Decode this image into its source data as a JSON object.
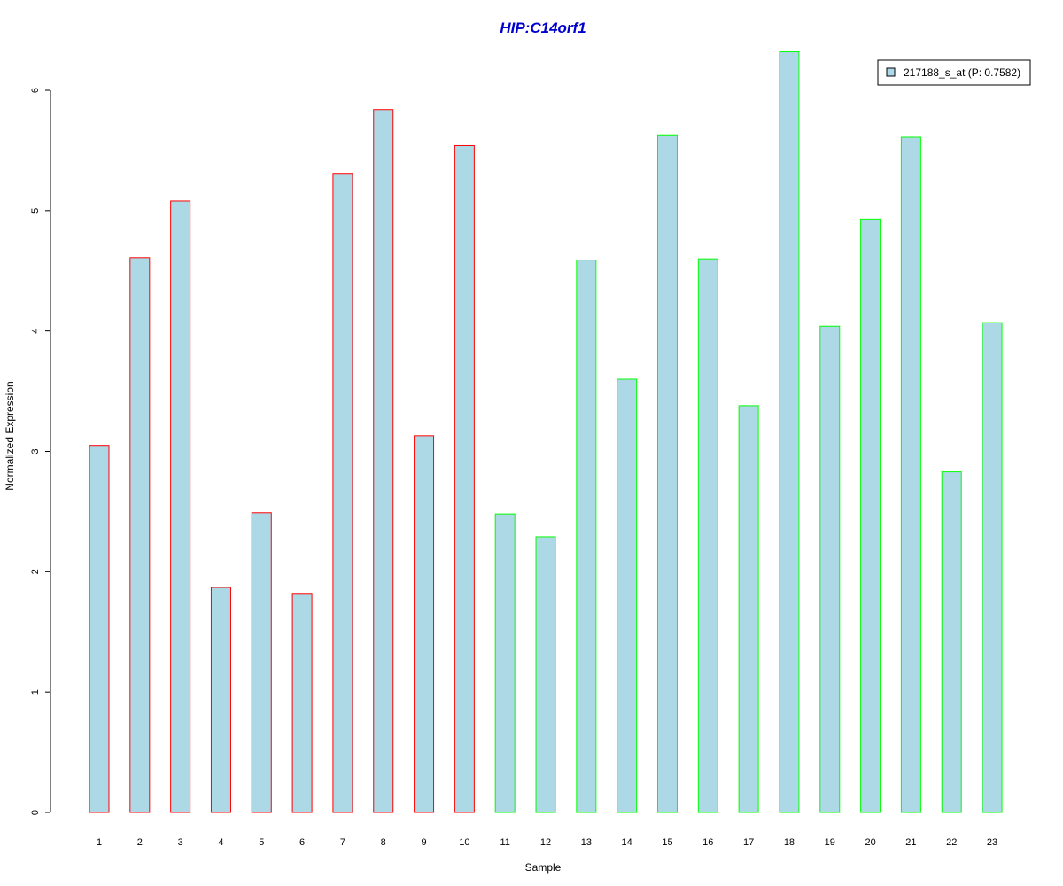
{
  "chart_data": {
    "type": "bar",
    "title": "HIP:C14orf1",
    "xlabel": "Sample",
    "ylabel": "Normalized Expression",
    "categories": [
      "1",
      "2",
      "3",
      "4",
      "5",
      "6",
      "7",
      "8",
      "9",
      "10",
      "11",
      "12",
      "13",
      "14",
      "15",
      "16",
      "17",
      "18",
      "19",
      "20",
      "21",
      "22",
      "23"
    ],
    "series": [
      {
        "name": "217188_s_at (P: 0.7582)",
        "values": [
          3.05,
          4.61,
          5.08,
          1.87,
          2.49,
          1.82,
          5.31,
          5.84,
          3.13,
          5.54,
          2.48,
          2.29,
          4.59,
          3.6,
          5.63,
          4.6,
          3.38,
          6.32,
          4.04,
          4.93,
          5.61,
          2.83,
          4.07
        ],
        "fill": "#add8e6",
        "border_colors": [
          "#ff0000",
          "#ff0000",
          "#ff0000",
          "#ff0000",
          "#ff0000",
          "#ff0000",
          "#ff0000",
          "#ff0000",
          "#ff0000",
          "#ff0000",
          "#00ff00",
          "#00ff00",
          "#00ff00",
          "#00ff00",
          "#00ff00",
          "#00ff00",
          "#00ff00",
          "#00ff00",
          "#00ff00",
          "#00ff00",
          "#00ff00",
          "#00ff00",
          "#00ff00"
        ]
      }
    ],
    "ylim": [
      0,
      6
    ],
    "yticks": [
      0,
      1,
      2,
      3,
      4,
      5,
      6
    ],
    "grid": false,
    "legend_position": "top-right",
    "title_color": "#0000cc"
  }
}
